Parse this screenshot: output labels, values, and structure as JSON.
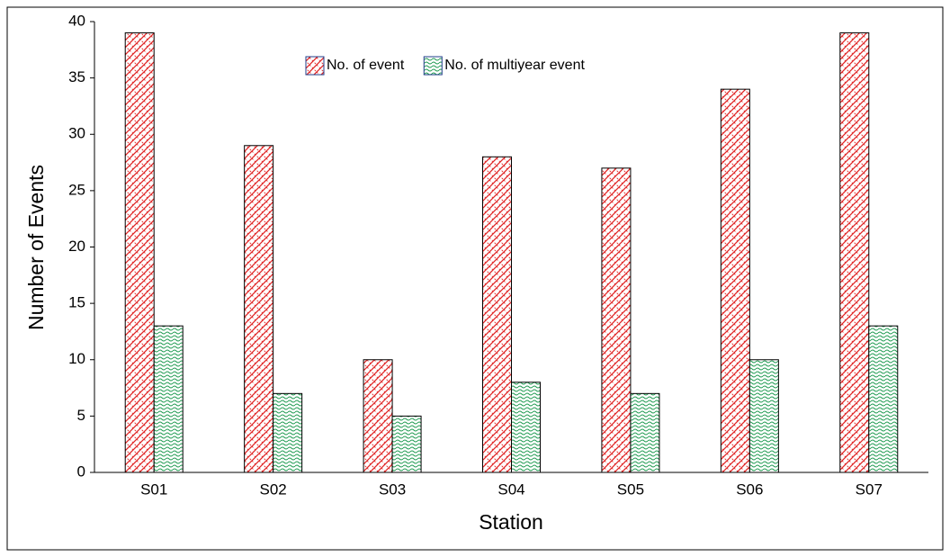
{
  "chart_data": {
    "type": "bar",
    "x_label": "Station",
    "y_label": "Number of Events",
    "categories": [
      "S01",
      "S02",
      "S03",
      "S04",
      "S05",
      "S06",
      "S07"
    ],
    "series": [
      {
        "name": "No. of event",
        "color": "#e02424",
        "values": [
          39,
          29,
          10,
          28,
          27,
          34,
          39
        ]
      },
      {
        "name": "No. of multiyear event",
        "color": "#1e9a50",
        "values": [
          13,
          7,
          5,
          8,
          7,
          10,
          13
        ]
      }
    ],
    "ylim": [
      0,
      40
    ],
    "yticks": [
      0,
      5,
      10,
      15,
      20,
      25,
      30,
      35,
      40
    ],
    "grid": false,
    "legend": "top"
  }
}
